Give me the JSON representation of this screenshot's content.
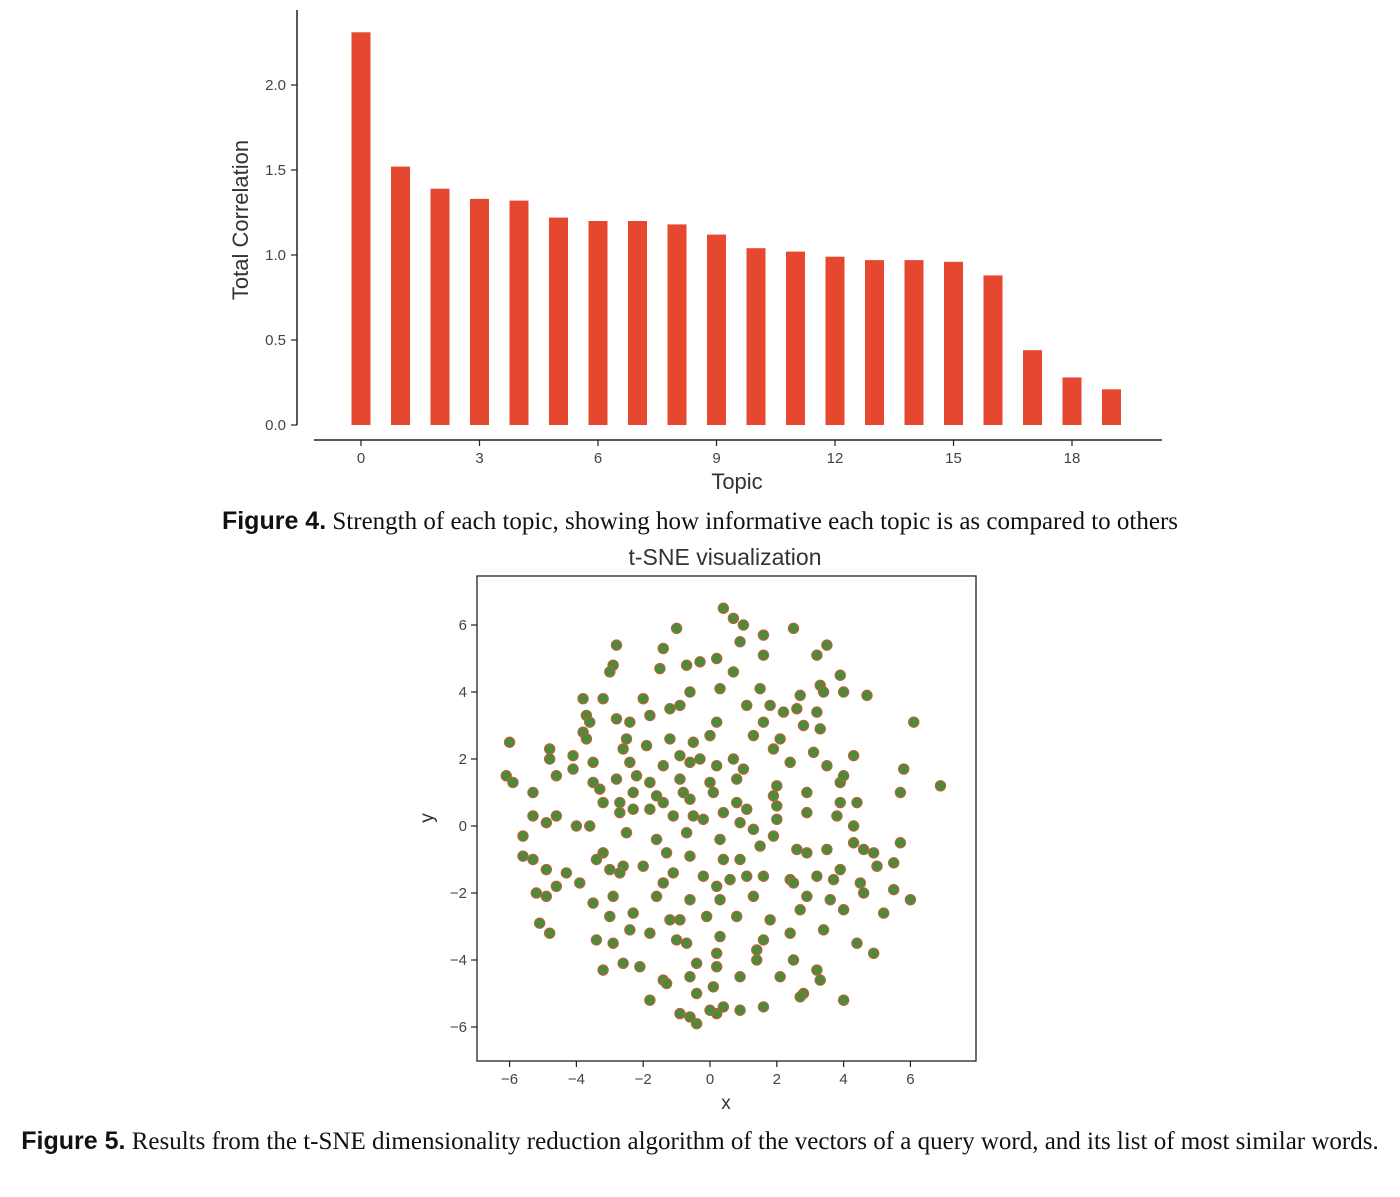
{
  "figure4": {
    "caption_label": "Figure 4.",
    "caption_text": "Strength of each topic, showing how informative each topic is as compared to others"
  },
  "figure5": {
    "caption_label": "Figure 5.",
    "caption_text": "Results from the t-SNE dimensionality reduction algorithm of the vectors of a query word, and its list of most similar words."
  },
  "chart_data": [
    {
      "type": "bar",
      "title": "",
      "xlabel": "Topic",
      "ylabel": "Total Correlation",
      "categories": [
        0,
        1,
        2,
        3,
        4,
        5,
        6,
        7,
        8,
        9,
        10,
        11,
        12,
        13,
        14,
        15,
        16,
        17,
        18,
        19
      ],
      "values": [
        2.31,
        1.52,
        1.39,
        1.33,
        1.32,
        1.22,
        1.2,
        1.2,
        1.18,
        1.12,
        1.04,
        1.02,
        0.99,
        0.97,
        0.97,
        0.96,
        0.88,
        0.44,
        0.28,
        0.21
      ],
      "xticks": [
        0,
        3,
        6,
        9,
        12,
        15,
        18
      ],
      "yticks": [
        0.0,
        0.5,
        1.0,
        1.5,
        2.0
      ],
      "ylim": [
        0,
        2.42
      ],
      "bar_color": "#e5472f",
      "grid": false,
      "legend": "none"
    },
    {
      "type": "scatter",
      "title": "t-SNE visualization",
      "xlabel": "x",
      "ylabel": "y",
      "xlim": [
        -6.9,
        8.1
      ],
      "ylim": [
        -7.0,
        7.5
      ],
      "xticks": [
        -6,
        -4,
        -2,
        0,
        2,
        4,
        6
      ],
      "yticks": [
        -6,
        -4,
        -2,
        0,
        2,
        4,
        6
      ],
      "marker_color": "#4f8a3a",
      "marker_edge": "#c0603a",
      "grid": false,
      "legend": "none",
      "points": [
        [
          0.4,
          6.5
        ],
        [
          0.7,
          6.2
        ],
        [
          1.0,
          6.0
        ],
        [
          2.5,
          5.9
        ],
        [
          1.6,
          5.7
        ],
        [
          0.9,
          5.5
        ],
        [
          -1.4,
          5.3
        ],
        [
          -1.0,
          5.9
        ],
        [
          -2.8,
          5.4
        ],
        [
          3.5,
          5.4
        ],
        [
          3.2,
          5.1
        ],
        [
          1.6,
          5.1
        ],
        [
          -0.7,
          4.8
        ],
        [
          -0.3,
          4.9
        ],
        [
          0.2,
          5.0
        ],
        [
          -2.9,
          4.8
        ],
        [
          -3.0,
          4.6
        ],
        [
          -1.5,
          4.7
        ],
        [
          0.7,
          4.6
        ],
        [
          3.9,
          4.5
        ],
        [
          3.3,
          4.2
        ],
        [
          1.5,
          4.1
        ],
        [
          -0.6,
          4.0
        ],
        [
          0.3,
          4.1
        ],
        [
          2.7,
          3.9
        ],
        [
          3.4,
          4.0
        ],
        [
          4.0,
          4.0
        ],
        [
          4.7,
          3.9
        ],
        [
          -3.8,
          3.8
        ],
        [
          -3.2,
          3.8
        ],
        [
          -2.0,
          3.8
        ],
        [
          -1.2,
          3.5
        ],
        [
          -0.9,
          3.6
        ],
        [
          1.1,
          3.6
        ],
        [
          2.2,
          3.4
        ],
        [
          2.6,
          3.5
        ],
        [
          3.2,
          3.4
        ],
        [
          6.1,
          3.1
        ],
        [
          -3.7,
          3.3
        ],
        [
          -3.6,
          3.1
        ],
        [
          -2.8,
          3.2
        ],
        [
          -2.4,
          3.1
        ],
        [
          -1.8,
          3.3
        ],
        [
          0.2,
          3.1
        ],
        [
          1.6,
          3.1
        ],
        [
          2.8,
          3.0
        ],
        [
          3.3,
          2.9
        ],
        [
          -3.8,
          2.8
        ],
        [
          -3.7,
          2.6
        ],
        [
          -2.5,
          2.6
        ],
        [
          -1.2,
          2.6
        ],
        [
          -0.5,
          2.5
        ],
        [
          0.0,
          2.7
        ],
        [
          1.3,
          2.7
        ],
        [
          2.1,
          2.6
        ],
        [
          -6.0,
          2.5
        ],
        [
          -4.8,
          2.3
        ],
        [
          -4.1,
          2.1
        ],
        [
          -2.6,
          2.3
        ],
        [
          -1.9,
          2.4
        ],
        [
          -0.9,
          2.1
        ],
        [
          -0.3,
          2.0
        ],
        [
          0.7,
          2.0
        ],
        [
          1.9,
          2.3
        ],
        [
          3.1,
          2.2
        ],
        [
          4.3,
          2.1
        ],
        [
          -4.8,
          2.0
        ],
        [
          -4.1,
          1.7
        ],
        [
          -3.5,
          1.9
        ],
        [
          -2.4,
          1.9
        ],
        [
          -1.4,
          1.8
        ],
        [
          -0.6,
          1.9
        ],
        [
          0.2,
          1.8
        ],
        [
          1.0,
          1.7
        ],
        [
          3.5,
          1.8
        ],
        [
          5.8,
          1.7
        ],
        [
          -6.1,
          1.5
        ],
        [
          -5.9,
          1.3
        ],
        [
          -4.6,
          1.5
        ],
        [
          -3.5,
          1.3
        ],
        [
          -2.8,
          1.4
        ],
        [
          -1.8,
          1.3
        ],
        [
          -0.9,
          1.4
        ],
        [
          0.0,
          1.3
        ],
        [
          0.8,
          1.4
        ],
        [
          2.0,
          1.2
        ],
        [
          3.9,
          1.3
        ],
        [
          4.0,
          1.5
        ],
        [
          6.9,
          1.2
        ],
        [
          -5.3,
          1.0
        ],
        [
          -3.3,
          1.1
        ],
        [
          -2.3,
          1.0
        ],
        [
          -1.6,
          0.9
        ],
        [
          -0.8,
          1.0
        ],
        [
          0.1,
          1.0
        ],
        [
          1.9,
          0.9
        ],
        [
          2.9,
          1.0
        ],
        [
          5.7,
          1.0
        ],
        [
          -3.2,
          0.7
        ],
        [
          -2.7,
          0.7
        ],
        [
          -1.4,
          0.7
        ],
        [
          -0.6,
          0.8
        ],
        [
          0.8,
          0.7
        ],
        [
          2.0,
          0.6
        ],
        [
          3.9,
          0.7
        ],
        [
          4.4,
          0.7
        ],
        [
          -5.3,
          0.3
        ],
        [
          -4.9,
          0.1
        ],
        [
          -4.6,
          0.3
        ],
        [
          -4.0,
          0.0
        ],
        [
          -3.6,
          0.0
        ],
        [
          -2.7,
          0.4
        ],
        [
          -2.3,
          0.5
        ],
        [
          -1.8,
          0.5
        ],
        [
          -1.1,
          0.3
        ],
        [
          -0.5,
          0.3
        ],
        [
          0.4,
          0.4
        ],
        [
          1.1,
          0.5
        ],
        [
          2.0,
          0.2
        ],
        [
          2.9,
          0.4
        ],
        [
          3.8,
          0.3
        ],
        [
          4.3,
          0.0
        ],
        [
          -5.6,
          -0.3
        ],
        [
          -5.6,
          -0.9
        ],
        [
          -3.2,
          -0.8
        ],
        [
          -2.5,
          -0.2
        ],
        [
          -1.6,
          -0.4
        ],
        [
          -0.7,
          -0.2
        ],
        [
          0.3,
          -0.4
        ],
        [
          1.3,
          -0.1
        ],
        [
          2.6,
          -0.7
        ],
        [
          3.5,
          -0.7
        ],
        [
          4.3,
          -0.5
        ],
        [
          4.6,
          -0.7
        ],
        [
          5.7,
          -0.5
        ],
        [
          -5.3,
          -1.0
        ],
        [
          -3.4,
          -1.0
        ],
        [
          -2.6,
          -1.2
        ],
        [
          -1.3,
          -0.8
        ],
        [
          -0.6,
          -0.9
        ],
        [
          0.4,
          -1.0
        ],
        [
          1.5,
          -0.6
        ],
        [
          2.9,
          -0.8
        ],
        [
          3.9,
          -1.3
        ],
        [
          4.9,
          -0.8
        ],
        [
          5.5,
          -1.1
        ],
        [
          -4.9,
          -1.3
        ],
        [
          -4.3,
          -1.4
        ],
        [
          -3.0,
          -1.3
        ],
        [
          -2.0,
          -1.2
        ],
        [
          -1.1,
          -1.4
        ],
        [
          0.2,
          -1.8
        ],
        [
          1.1,
          -1.5
        ],
        [
          2.4,
          -1.6
        ],
        [
          3.2,
          -1.5
        ],
        [
          5.0,
          -1.2
        ],
        [
          -4.6,
          -1.8
        ],
        [
          -3.9,
          -1.7
        ],
        [
          -2.7,
          -1.4
        ],
        [
          -1.4,
          -1.7
        ],
        [
          -0.2,
          -1.5
        ],
        [
          0.6,
          -1.6
        ],
        [
          1.6,
          -1.5
        ],
        [
          2.5,
          -1.7
        ],
        [
          3.7,
          -1.6
        ],
        [
          4.5,
          -1.7
        ],
        [
          -5.2,
          -2.0
        ],
        [
          -4.9,
          -2.1
        ],
        [
          -3.5,
          -2.3
        ],
        [
          -2.9,
          -2.1
        ],
        [
          -1.6,
          -2.1
        ],
        [
          -0.6,
          -2.2
        ],
        [
          0.3,
          -2.2
        ],
        [
          1.3,
          -2.1
        ],
        [
          3.6,
          -2.2
        ],
        [
          4.6,
          -2.0
        ],
        [
          5.5,
          -1.9
        ],
        [
          6.0,
          -2.2
        ],
        [
          -3.0,
          -2.7
        ],
        [
          -2.3,
          -2.6
        ],
        [
          -1.2,
          -2.8
        ],
        [
          -0.1,
          -2.7
        ],
        [
          0.8,
          -2.7
        ],
        [
          1.8,
          -2.8
        ],
        [
          2.7,
          -2.5
        ],
        [
          4.0,
          -2.5
        ],
        [
          5.2,
          -2.6
        ],
        [
          -5.1,
          -2.9
        ],
        [
          -4.8,
          -3.2
        ],
        [
          -3.4,
          -3.4
        ],
        [
          -2.9,
          -3.5
        ],
        [
          -2.4,
          -3.1
        ],
        [
          -1.8,
          -3.2
        ],
        [
          -1.0,
          -3.4
        ],
        [
          0.3,
          -3.3
        ],
        [
          1.6,
          -3.4
        ],
        [
          2.4,
          -3.2
        ],
        [
          3.4,
          -3.1
        ],
        [
          4.4,
          -3.5
        ],
        [
          -3.2,
          -4.3
        ],
        [
          -2.6,
          -4.1
        ],
        [
          -2.1,
          -4.2
        ],
        [
          -1.4,
          -4.6
        ],
        [
          -0.4,
          -4.1
        ],
        [
          0.2,
          -4.2
        ],
        [
          1.4,
          -4.0
        ],
        [
          2.5,
          -4.0
        ],
        [
          3.2,
          -4.3
        ],
        [
          4.9,
          -3.8
        ],
        [
          -1.3,
          -4.7
        ],
        [
          -0.6,
          -4.5
        ],
        [
          0.1,
          -4.8
        ],
        [
          0.9,
          -4.5
        ],
        [
          2.1,
          -4.5
        ],
        [
          3.3,
          -4.6
        ],
        [
          -1.8,
          -5.2
        ],
        [
          -0.4,
          -5.0
        ],
        [
          0.4,
          -5.4
        ],
        [
          1.6,
          -5.4
        ],
        [
          2.8,
          -5.0
        ],
        [
          4.0,
          -5.2
        ],
        [
          -0.6,
          -5.7
        ],
        [
          -0.4,
          -5.9
        ],
        [
          0.2,
          -5.6
        ],
        [
          0.9,
          -5.5
        ],
        [
          2.7,
          -5.1
        ],
        [
          0.0,
          -5.5
        ],
        [
          -0.9,
          -5.6
        ],
        [
          1.4,
          -3.7
        ],
        [
          -0.7,
          -3.5
        ],
        [
          0.2,
          -3.8
        ],
        [
          2.9,
          -2.1
        ],
        [
          -0.9,
          -2.8
        ],
        [
          0.9,
          -1.0
        ],
        [
          1.9,
          -0.3
        ],
        [
          -0.2,
          0.2
        ],
        [
          0.9,
          0.1
        ],
        [
          -2.2,
          1.5
        ],
        [
          2.4,
          1.9
        ],
        [
          1.8,
          3.6
        ]
      ]
    }
  ]
}
